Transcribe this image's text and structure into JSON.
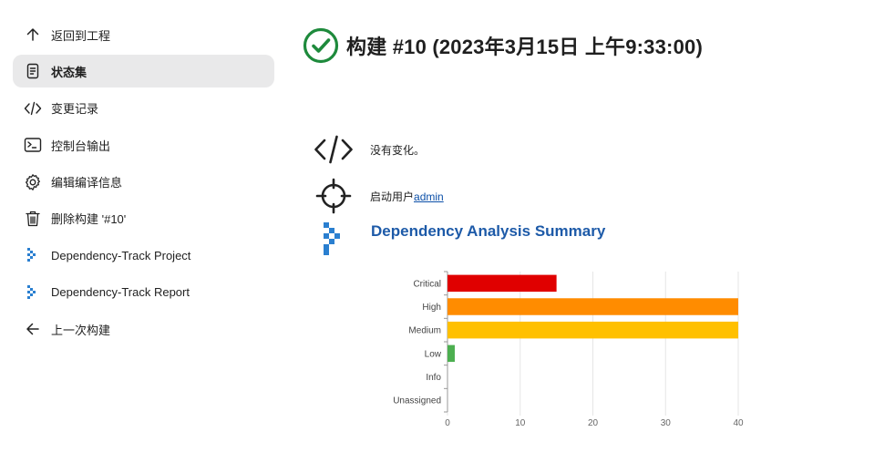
{
  "sidebar": {
    "items": [
      {
        "label": "返回到工程",
        "icon": "arrow-up-icon"
      },
      {
        "label": "状态集",
        "icon": "document-icon",
        "active": true
      },
      {
        "label": "变更记录",
        "icon": "code-icon"
      },
      {
        "label": "控制台输出",
        "icon": "terminal-icon"
      },
      {
        "label": "编辑编译信息",
        "icon": "gear-icon"
      },
      {
        "label": "删除构建 '#10'",
        "icon": "trash-icon"
      },
      {
        "label": "Dependency-Track Project",
        "icon": "dependency-track-icon"
      },
      {
        "label": "Dependency-Track Report",
        "icon": "dependency-track-icon"
      },
      {
        "label": "上一次构建",
        "icon": "arrow-left-icon"
      }
    ]
  },
  "header": {
    "title": "构建 #10 (2023年3月15日 上午9:33:00)",
    "status_icon": "success-check-icon",
    "status_color": "#1e8a3c"
  },
  "summary": {
    "changes_text": "没有变化。",
    "started_by_prefix": "启动用户",
    "started_by_user": "admin",
    "dependency_title": "Dependency Analysis Summary"
  },
  "chart_data": {
    "type": "bar",
    "orientation": "horizontal",
    "categories": [
      "Critical",
      "High",
      "Medium",
      "Low",
      "Info",
      "Unassigned"
    ],
    "values": [
      15,
      40,
      40,
      1,
      0,
      0
    ],
    "colors": [
      "#e00000",
      "#ff8c00",
      "#ffc000",
      "#4caf50",
      "#2196f3",
      "#9e9e9e"
    ],
    "xlim": [
      0,
      40
    ],
    "xticks": [
      0,
      10,
      20,
      30,
      40
    ],
    "grid": true,
    "title": "",
    "xlabel": "",
    "ylabel": ""
  }
}
